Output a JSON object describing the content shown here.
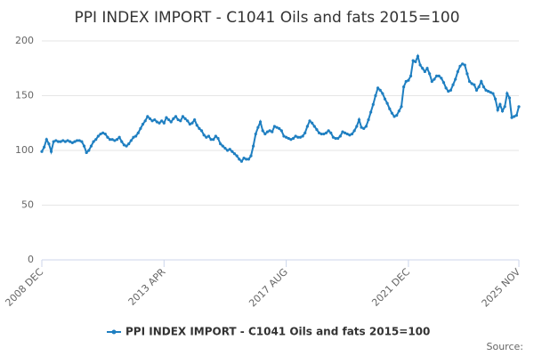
{
  "chart_data": {
    "type": "line",
    "title": "PPI INDEX IMPORT - C1041 Oils and fats 2015=100",
    "source": "Source:",
    "categories": [
      "2008 DEC",
      null,
      null,
      null,
      null,
      null,
      null,
      null,
      null,
      null,
      null,
      null,
      null,
      null,
      null,
      null,
      null,
      null,
      null,
      null,
      null,
      null,
      null,
      null,
      null,
      null,
      null,
      null,
      null,
      null,
      null,
      null,
      null,
      null,
      null,
      null,
      null,
      null,
      null,
      null,
      null,
      null,
      null,
      null,
      null,
      null,
      null,
      null,
      null,
      null,
      null,
      null,
      "2013 APR",
      null,
      null,
      null,
      null,
      null,
      null,
      null,
      null,
      null,
      null,
      null,
      null,
      null,
      null,
      null,
      null,
      null,
      null,
      null,
      null,
      null,
      null,
      null,
      null,
      null,
      null,
      null,
      null,
      null,
      null,
      null,
      null,
      null,
      null,
      null,
      null,
      null,
      null,
      null,
      null,
      null,
      null,
      null,
      null,
      null,
      null,
      null,
      null,
      null,
      null,
      null,
      "2017 AUG",
      null,
      null,
      null,
      null,
      null,
      null,
      null,
      null,
      null,
      null,
      null,
      null,
      null,
      null,
      null,
      null,
      null,
      null,
      null,
      null,
      null,
      null,
      null,
      null,
      null,
      null,
      null,
      null,
      null,
      null,
      null,
      null,
      null,
      null,
      null,
      null,
      null,
      null,
      null,
      null,
      null,
      null,
      null,
      null,
      null,
      null,
      null,
      null,
      null,
      null,
      null,
      "2021 DEC",
      null,
      null,
      null,
      null,
      null,
      null,
      null,
      null,
      null,
      null,
      null,
      null,
      null,
      null,
      null,
      null,
      null,
      null,
      null,
      null,
      null,
      null,
      null,
      null,
      null,
      null,
      null,
      null,
      null,
      null,
      null,
      null,
      null,
      null,
      null,
      null,
      null,
      null,
      null,
      null,
      null,
      null,
      null,
      null,
      null,
      null,
      "2025 NOV"
    ],
    "series": [
      {
        "name": "PPI INDEX IMPORT - C1041 Oils and fats 2015=100",
        "color": "#1f7fc1",
        "values": [
          99,
          103,
          110,
          106,
          99,
          108,
          109,
          108,
          108,
          109,
          108,
          109,
          108,
          107,
          108,
          109,
          109,
          108,
          104,
          98,
          100,
          104,
          108,
          110,
          113,
          115,
          116,
          115,
          112,
          110,
          110,
          109,
          110,
          112,
          108,
          105,
          104,
          106,
          109,
          112,
          113,
          116,
          120,
          124,
          127,
          131,
          129,
          127,
          128,
          126,
          125,
          127,
          125,
          130,
          128,
          126,
          129,
          131,
          128,
          127,
          131,
          129,
          127,
          124,
          125,
          128,
          123,
          120,
          118,
          114,
          112,
          113,
          110,
          110,
          113,
          111,
          106,
          104,
          102,
          100,
          101,
          99,
          97,
          95,
          92,
          90,
          93,
          92,
          92,
          95,
          104,
          115,
          121,
          126,
          118,
          115,
          117,
          118,
          117,
          122,
          121,
          120,
          118,
          113,
          112,
          111,
          110,
          111,
          113,
          112,
          112,
          113,
          116,
          122,
          127,
          125,
          122,
          119,
          116,
          115,
          115,
          116,
          118,
          116,
          112,
          111,
          111,
          113,
          117,
          116,
          115,
          114,
          115,
          118,
          122,
          128,
          121,
          120,
          122,
          128,
          135,
          142,
          150,
          157,
          155,
          152,
          147,
          143,
          138,
          134,
          131,
          132,
          136,
          140,
          158,
          163,
          164,
          168,
          182,
          181,
          186,
          178,
          175,
          172,
          175,
          170,
          163,
          165,
          168,
          168,
          166,
          162,
          157,
          154,
          155,
          160,
          165,
          172,
          177,
          179,
          178,
          170,
          163,
          161,
          160,
          155,
          158,
          163,
          158,
          155,
          154,
          153,
          152,
          147,
          137,
          142,
          136,
          140,
          152,
          148,
          130,
          131,
          132,
          140
        ]
      }
    ],
    "ylim": [
      0,
      200
    ],
    "yticks": [
      0,
      50,
      100,
      150,
      200
    ],
    "grid": true
  }
}
